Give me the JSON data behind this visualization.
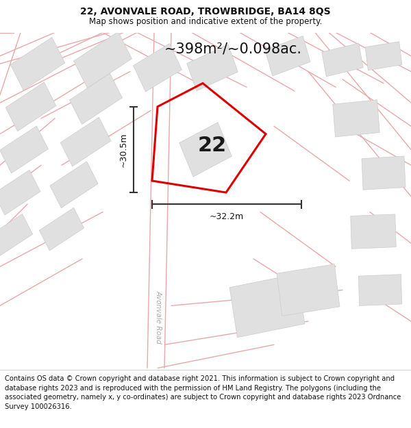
{
  "title": "22, AVONVALE ROAD, TROWBRIDGE, BA14 8QS",
  "subtitle": "Map shows position and indicative extent of the property.",
  "area_label": "~398m²/~0.098ac.",
  "number_label": "22",
  "dim_vertical": "~30.5m",
  "dim_horizontal": "~32.2m",
  "road_label": "Avonvale Road",
  "footer": "Contains OS data © Crown copyright and database right 2021. This information is subject to Crown copyright and database rights 2023 and is reproduced with the permission of HM Land Registry. The polygons (including the associated geometry, namely x, y co-ordinates) are subject to Crown copyright and database rights 2023 Ordnance Survey 100026316.",
  "bg_color": "#ffffff",
  "plot_color": "#dd0000",
  "building_color": "#e0e0e0",
  "building_edge": "#cccccc",
  "road_fill_color": "#f2f2f2",
  "road_line_color": "#e8a0a0",
  "dim_line_color": "#333333",
  "title_fontsize": 10,
  "subtitle_fontsize": 8.5,
  "footer_fontsize": 7.2,
  "area_fontsize": 15,
  "label_fontsize": 22,
  "dim_fontsize": 9,
  "road_text_fontsize": 7.5
}
